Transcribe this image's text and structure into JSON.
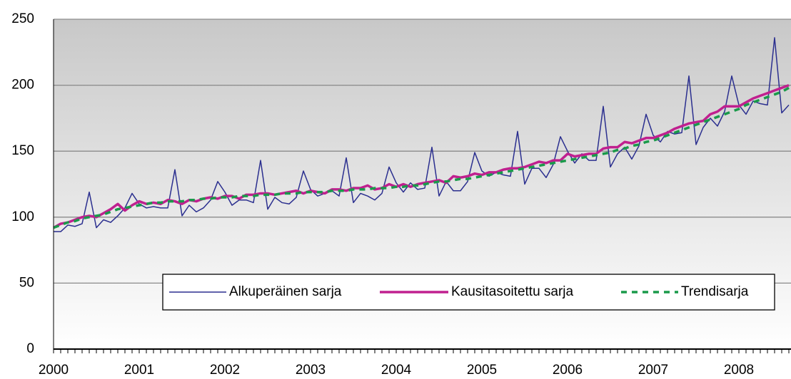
{
  "chart_data": {
    "type": "line",
    "categories": [
      "2000",
      null,
      null,
      null,
      null,
      null,
      null,
      null,
      null,
      null,
      null,
      null,
      "2001",
      null,
      null,
      null,
      null,
      null,
      null,
      null,
      null,
      null,
      null,
      null,
      "2002",
      null,
      null,
      null,
      null,
      null,
      null,
      null,
      null,
      null,
      null,
      null,
      "2003",
      null,
      null,
      null,
      null,
      null,
      null,
      null,
      null,
      null,
      null,
      null,
      "2004",
      null,
      null,
      null,
      null,
      null,
      null,
      null,
      null,
      null,
      null,
      null,
      "2005",
      null,
      null,
      null,
      null,
      null,
      null,
      null,
      null,
      null,
      null,
      null,
      "2006",
      null,
      null,
      null,
      null,
      null,
      null,
      null,
      null,
      null,
      null,
      null,
      "2007",
      null,
      null,
      null,
      null,
      null,
      null,
      null,
      null,
      null,
      null,
      null,
      "2008",
      null,
      null,
      null,
      null,
      null,
      null,
      null
    ],
    "series": [
      {
        "name": "Alkuperäinen sarja",
        "color": "#2b2f8f",
        "width": 1.5,
        "values": [
          89,
          89,
          94,
          93,
          95,
          119,
          92,
          98,
          96,
          101,
          107,
          118,
          110,
          107,
          108,
          107,
          107,
          136,
          101,
          109,
          104,
          107,
          113,
          127,
          119,
          109,
          113,
          113,
          111,
          143,
          106,
          115,
          111,
          110,
          115,
          135,
          121,
          116,
          118,
          120,
          116,
          145,
          111,
          118,
          116,
          113,
          118,
          138,
          126,
          119,
          126,
          121,
          122,
          153,
          116,
          127,
          120,
          120,
          127,
          149,
          135,
          131,
          134,
          132,
          131,
          165,
          125,
          137,
          137,
          130,
          140,
          161,
          150,
          141,
          148,
          143,
          143,
          184,
          138,
          148,
          153,
          144,
          154,
          178,
          162,
          157,
          165,
          163,
          164,
          207,
          155,
          168,
          175,
          169,
          180,
          207,
          185,
          178,
          188,
          186,
          185,
          236,
          179,
          185
        ]
      },
      {
        "name": "Kausitasoitettu sarja",
        "color": "#c0208f",
        "width": 3.5,
        "values": [
          92,
          95,
          96,
          98,
          100,
          101,
          100,
          103,
          106,
          110,
          105,
          109,
          112,
          110,
          111,
          110,
          113,
          112,
          110,
          113,
          112,
          114,
          115,
          114,
          116,
          116,
          114,
          117,
          117,
          118,
          118,
          117,
          118,
          119,
          120,
          118,
          120,
          119,
          118,
          121,
          121,
          120,
          122,
          122,
          124,
          121,
          122,
          125,
          123,
          125,
          123,
          125,
          126,
          127,
          128,
          126,
          131,
          130,
          131,
          133,
          132,
          134,
          134,
          136,
          137,
          137,
          138,
          140,
          142,
          141,
          143,
          143,
          148,
          146,
          147,
          148,
          148,
          152,
          153,
          153,
          157,
          156,
          158,
          160,
          160,
          162,
          164,
          167,
          169,
          171,
          172,
          173,
          178,
          180,
          184,
          184,
          184,
          187,
          190,
          192,
          194,
          196,
          198,
          200
        ]
      },
      {
        "name": "Trendisarja",
        "color": "#1a9a4a",
        "width": 3.5,
        "line_style": "dashed",
        "values": [
          92,
          94,
          96,
          97,
          99,
          100,
          101,
          102,
          104,
          106,
          107,
          108,
          109,
          110,
          111,
          111,
          112,
          112,
          112,
          113,
          113,
          114,
          114,
          115,
          115,
          115,
          116,
          116,
          116,
          117,
          117,
          117,
          118,
          118,
          118,
          119,
          119,
          119,
          119,
          120,
          120,
          120,
          121,
          121,
          121,
          122,
          122,
          122,
          123,
          123,
          124,
          124,
          125,
          126,
          127,
          127,
          128,
          129,
          129,
          130,
          131,
          132,
          133,
          134,
          135,
          136,
          137,
          138,
          139,
          140,
          141,
          142,
          143,
          144,
          145,
          146,
          147,
          148,
          149,
          151,
          152,
          154,
          155,
          157,
          158,
          160,
          162,
          164,
          166,
          168,
          170,
          172,
          174,
          176,
          178,
          180,
          182,
          185,
          187,
          189,
          191,
          193,
          195,
          198
        ]
      }
    ],
    "ylim": [
      0,
      250
    ],
    "yticks": [
      0,
      50,
      100,
      150,
      200,
      250
    ],
    "grid": true,
    "legend": "lower right"
  }
}
